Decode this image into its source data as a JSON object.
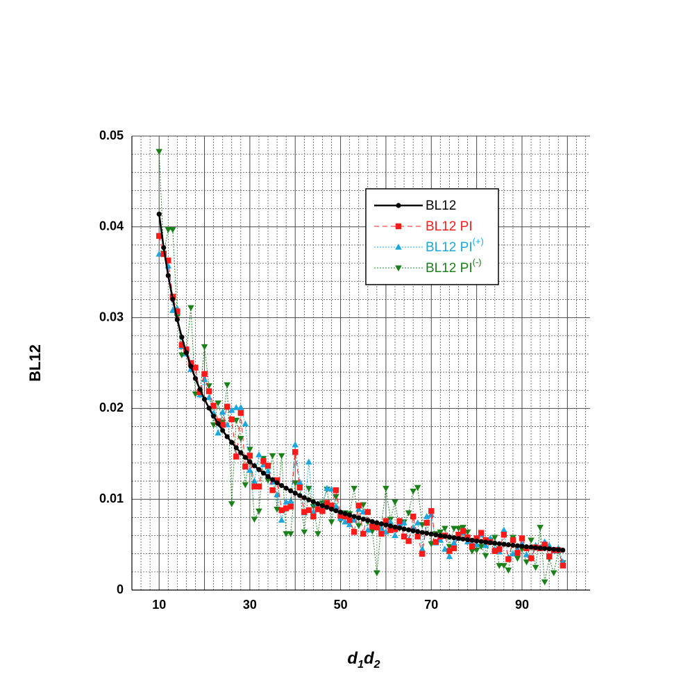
{
  "chart_data": {
    "type": "line",
    "x_label": "d1d2",
    "y_label": "BL12",
    "x": [
      10,
      11,
      12,
      13,
      14,
      15,
      16,
      17,
      18,
      19,
      20,
      21,
      22,
      23,
      24,
      25,
      26,
      27,
      28,
      29,
      30,
      31,
      32,
      33,
      34,
      35,
      36,
      37,
      38,
      39,
      40,
      41,
      42,
      43,
      44,
      45,
      46,
      47,
      48,
      49,
      50,
      51,
      52,
      53,
      54,
      55,
      56,
      57,
      58,
      59,
      60,
      61,
      62,
      63,
      64,
      65,
      66,
      67,
      68,
      69,
      70,
      71,
      72,
      73,
      74,
      75,
      76,
      77,
      78,
      79,
      80,
      81,
      82,
      83,
      84,
      85,
      86,
      87,
      88,
      89,
      90,
      91,
      92,
      93,
      94,
      95,
      96,
      97,
      98,
      99
    ],
    "series": [
      {
        "name": "BL12",
        "color": "#000000",
        "marker": "circle",
        "linestyle": "solid",
        "values": [
          0.0414,
          0.03771,
          0.03464,
          0.03203,
          0.02979,
          0.02785,
          0.02614,
          0.02464,
          0.0233,
          0.0221,
          0.02102,
          0.02004,
          0.01915,
          0.01833,
          0.01758,
          0.01689,
          0.01626,
          0.01567,
          0.01512,
          0.01461,
          0.01413,
          0.01369,
          0.01327,
          0.01288,
          0.0125,
          0.01216,
          0.01182,
          0.01151,
          0.01122,
          0.01093,
          0.01067,
          0.01041,
          0.01017,
          0.00994,
          0.00972,
          0.0095,
          0.0093,
          0.00911,
          0.00892,
          0.00874,
          0.00857,
          0.00841,
          0.00825,
          0.0081,
          0.00795,
          0.00781,
          0.00767,
          0.00754,
          0.00741,
          0.00729,
          0.00717,
          0.00706,
          0.00694,
          0.00684,
          0.00673,
          0.00663,
          0.00653,
          0.00644,
          0.00634,
          0.00626,
          0.00617,
          0.00608,
          0.006,
          0.00592,
          0.00584,
          0.00576,
          0.00569,
          0.00562,
          0.00555,
          0.00548,
          0.00541,
          0.00535,
          0.00528,
          0.00522,
          0.00516,
          0.0051,
          0.00504,
          0.00499,
          0.00493,
          0.00488,
          0.00482,
          0.00477,
          0.00472,
          0.00467,
          0.00462,
          0.00457,
          0.00453,
          0.00448,
          0.00444,
          0.00439
        ]
      },
      {
        "name": "BL12 PI",
        "color": "#ff1a1a",
        "marker": "square",
        "linestyle": "dashed",
        "values": [
          0.039,
          0.037,
          0.0363,
          0.0323,
          0.0307,
          0.027,
          0.0265,
          0.025,
          0.0245,
          0.0218,
          0.0238,
          0.0219,
          0.0203,
          0.0186,
          0.0182,
          0.0202,
          0.0188,
          0.0147,
          0.0195,
          0.0136,
          0.0148,
          0.0114,
          0.0114,
          0.0142,
          0.0137,
          0.011,
          0.0121,
          0.0088,
          0.009,
          0.0092,
          0.0152,
          0.0113,
          0.0086,
          0.0088,
          0.0081,
          0.0089,
          0.0087,
          0.0096,
          0.0093,
          0.011,
          0.0082,
          0.0081,
          0.0077,
          0.0064,
          0.0093,
          0.0062,
          0.0086,
          0.007,
          0.0069,
          0.0062,
          0.0076,
          0.0066,
          0.0067,
          0.0076,
          0.0059,
          0.0054,
          0.0081,
          0.0059,
          0.004,
          0.0074,
          0.0087,
          0.0053,
          0.0059,
          0.006,
          0.0043,
          0.0046,
          0.0061,
          0.0065,
          0.0058,
          0.0048,
          0.0057,
          0.0063,
          0.0055,
          0.0053,
          0.0043,
          0.0045,
          0.0061,
          0.0034,
          0.0055,
          0.0041,
          0.0057,
          0.0046,
          0.0035,
          0.0047,
          0.0046,
          0.005,
          0.0037,
          0.0044,
          0.0044,
          0.0027
        ]
      },
      {
        "name": "BL12 PI(+)",
        "color": "#1aa7e0",
        "marker": "triangle-up",
        "linestyle": "dotted",
        "values": [
          0.037,
          0.037,
          0.0357,
          0.0308,
          0.031,
          0.0268,
          0.026,
          0.0243,
          0.0245,
          0.0215,
          0.0232,
          0.0212,
          0.0195,
          0.0173,
          0.0196,
          0.0182,
          0.0198,
          0.0201,
          0.0201,
          0.0183,
          0.0132,
          0.012,
          0.0149,
          0.0138,
          0.0131,
          0.0119,
          0.0105,
          0.0077,
          0.0097,
          0.0098,
          0.016,
          0.0119,
          0.0085,
          0.0141,
          0.0086,
          0.0095,
          0.0093,
          0.0112,
          0.0111,
          0.0092,
          0.0079,
          0.0075,
          0.0072,
          0.0077,
          0.0089,
          0.0086,
          0.0066,
          0.0074,
          0.0071,
          0.0068,
          0.0064,
          0.0075,
          0.006,
          0.0073,
          0.0074,
          0.0055,
          0.0069,
          0.0074,
          0.0045,
          0.0081,
          0.0083,
          0.0052,
          0.0055,
          0.0045,
          0.0037,
          0.0052,
          0.0057,
          0.0063,
          0.0053,
          0.005,
          0.005,
          0.0061,
          0.0049,
          0.0057,
          0.0045,
          0.0042,
          0.0066,
          0.0036,
          0.004,
          0.0045,
          0.0051,
          0.0039,
          0.0036,
          0.0049,
          0.0047,
          0.0053,
          0.0049,
          0.0043,
          0.0046,
          0.0031
        ]
      },
      {
        "name": "BL12 PI(-)",
        "color": "#1a801a",
        "marker": "triangle-down",
        "linestyle": "dotted",
        "values": [
          0.0483,
          0.0371,
          0.0397,
          0.0397,
          0.0301,
          0.0259,
          0.0262,
          0.0311,
          0.0216,
          0.0215,
          0.0268,
          0.0225,
          0.0182,
          0.0206,
          0.0185,
          0.0226,
          0.0095,
          0.0187,
          0.0167,
          0.0116,
          0.0155,
          0.0078,
          0.0087,
          0.0145,
          0.0121,
          0.0148,
          0.0089,
          0.0148,
          0.0062,
          0.0062,
          0.0118,
          0.0113,
          0.0064,
          0.0112,
          0.0092,
          0.0062,
          0.0096,
          0.0111,
          0.0075,
          0.0103,
          0.0077,
          0.0085,
          0.0084,
          0.0112,
          0.0071,
          0.0094,
          0.0075,
          0.0065,
          0.0019,
          0.0072,
          0.0112,
          0.0078,
          0.0097,
          0.0068,
          0.0075,
          0.0085,
          0.0109,
          0.0113,
          0.0072,
          0.0074,
          0.0051,
          0.0062,
          0.0064,
          0.0068,
          0.0048,
          0.0068,
          0.0068,
          0.0069,
          0.0064,
          0.0043,
          0.0044,
          0.0048,
          0.0038,
          0.0055,
          0.0058,
          0.0027,
          0.0027,
          0.0022,
          0.0058,
          0.0035,
          0.0045,
          0.0031,
          0.0055,
          0.0025,
          0.0069,
          0.0009,
          0.0035,
          0.0019,
          0.0043,
          0.003
        ]
      }
    ],
    "xlim": [
      4,
      105
    ],
    "ylim": [
      0,
      0.05
    ],
    "xticks": [
      10,
      30,
      50,
      70,
      90
    ],
    "yticks": [
      0,
      0.01,
      0.02,
      0.03,
      0.04,
      0.05
    ],
    "grid": true,
    "xgrid": [
      10,
      20,
      30,
      40,
      50,
      60,
      70,
      80,
      90,
      100
    ],
    "xminorgrid": [
      6,
      8,
      12,
      14,
      16,
      18,
      22,
      24,
      26,
      28,
      32,
      34,
      36,
      38,
      42,
      44,
      46,
      48,
      52,
      54,
      56,
      58,
      62,
      64,
      66,
      68,
      72,
      74,
      76,
      78,
      82,
      84,
      86,
      88,
      92,
      94,
      96,
      98,
      102,
      104
    ],
    "yminorgrid": [
      0.002,
      0.004,
      0.006,
      0.008,
      0.012,
      0.014,
      0.016,
      0.018,
      0.022,
      0.024,
      0.026,
      0.028,
      0.032,
      0.034,
      0.036,
      0.038,
      0.042,
      0.044,
      0.046,
      0.048
    ],
    "legend": "upper right"
  }
}
